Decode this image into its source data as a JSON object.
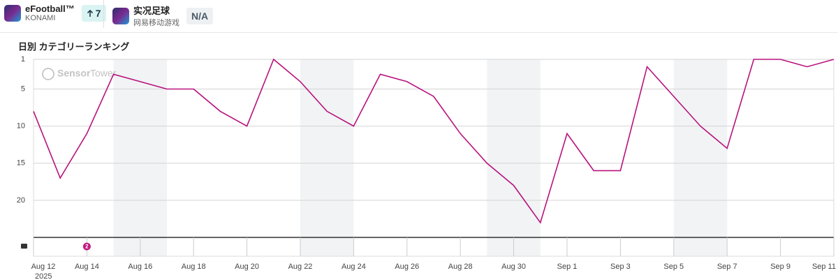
{
  "header": {
    "apps": [
      {
        "name": "eFootball™",
        "publisher": "KONAMI",
        "badge": "7"
      },
      {
        "name": "实况足球",
        "publisher": "网易移动游戏",
        "badge": "N/A"
      }
    ]
  },
  "chart_data": {
    "type": "line",
    "title": "日別 カテゴリーランキング",
    "watermark": [
      "Sensor",
      "Tower"
    ],
    "categories": [
      "Aug 12",
      null,
      "Aug 14",
      null,
      "Aug 16",
      null,
      "Aug 18",
      null,
      "Aug 20",
      null,
      "Aug 22",
      null,
      "Aug 24",
      null,
      "Aug 26",
      null,
      "Aug 28",
      null,
      "Aug 30",
      null,
      "Sep 1",
      null,
      "Sep 3",
      null,
      "Sep 5",
      null,
      "Sep 7",
      null,
      "Sep 9",
      null,
      "Sep 11"
    ],
    "year": "2025",
    "values": [
      8,
      17,
      11,
      3,
      4,
      5,
      5,
      8,
      10,
      1,
      4,
      8,
      10,
      3,
      4,
      6,
      11,
      15,
      18,
      23,
      11,
      16,
      16,
      2,
      6,
      10,
      13,
      1,
      1,
      2,
      1
    ],
    "color": "#b8127d",
    "ylim": [
      1,
      25
    ],
    "yticks": [
      1,
      5,
      10,
      15,
      20
    ],
    "y_inverted": true,
    "grid": true,
    "event_marker": "2"
  }
}
